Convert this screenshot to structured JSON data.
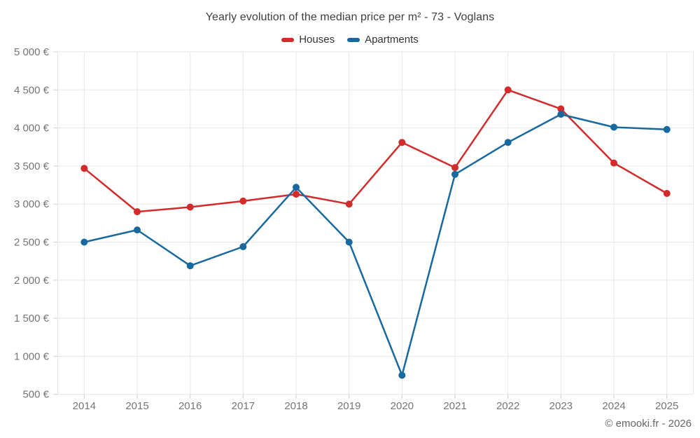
{
  "page": {
    "footer": "© emooki.fr - 2026"
  },
  "chart_data": {
    "type": "line",
    "title": "Yearly evolution of the median price per m² - 73 - Voglans",
    "categories": [
      "2014",
      "2015",
      "2016",
      "2017",
      "2018",
      "2019",
      "2020",
      "2021",
      "2022",
      "2023",
      "2024",
      "2025"
    ],
    "series": [
      {
        "name": "Houses",
        "color": "#d32b2c",
        "values": [
          3470,
          2900,
          2960,
          3040,
          3130,
          3000,
          3810,
          3480,
          4500,
          4250,
          3540,
          3140
        ]
      },
      {
        "name": "Apartments",
        "color": "#17699f",
        "values": [
          2500,
          2660,
          2190,
          2440,
          3220,
          2500,
          750,
          3390,
          3810,
          4180,
          4010,
          3980
        ]
      }
    ],
    "xlabel": "",
    "ylabel": "",
    "ylim": [
      500,
      5000
    ],
    "y_tick_step": 500,
    "y_tick_labels": [
      "500 €",
      "1 000 €",
      "1 500 €",
      "2 000 €",
      "2 500 €",
      "3 000 €",
      "3 500 €",
      "4 000 €",
      "4 500 €",
      "5 000 €"
    ],
    "grid": true,
    "legend_position": "top",
    "styles": {
      "grid_color": "#e7e7e7",
      "tick_color": "#cccccc",
      "axis_label_color": "#757575",
      "title_color": "#3e3e3e",
      "legend_text_color": "#333333",
      "footer_color": "#666666"
    }
  }
}
